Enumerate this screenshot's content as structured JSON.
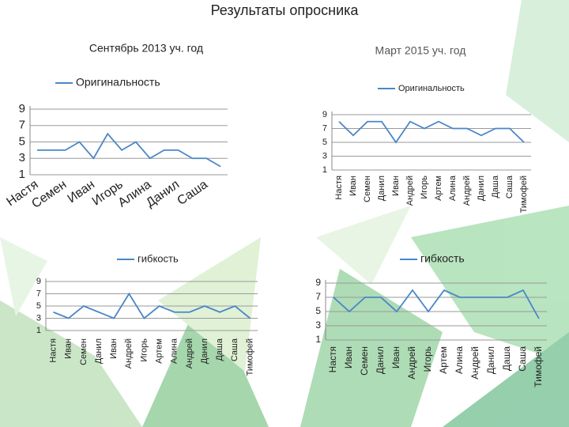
{
  "title": "Результаты опросника",
  "chart_data": [
    {
      "type": "line",
      "title": "Сентябрь 2013 уч. год",
      "categories": [
        "Настя",
        null,
        "Семен",
        null,
        "Иван",
        null,
        "Игорь",
        null,
        "Алина",
        null,
        "Данил",
        null,
        "Саша",
        null
      ],
      "series": [
        {
          "name": "Оригинальность",
          "color": "#4a86c8",
          "values": [
            4,
            4,
            4,
            5,
            3,
            6,
            4,
            5,
            3,
            4,
            4,
            3,
            3,
            2
          ]
        }
      ],
      "ylim": [
        1,
        9
      ],
      "yticks": [
        1,
        3,
        5,
        7,
        9
      ],
      "grid": true,
      "legend": "top"
    },
    {
      "type": "line",
      "title": "Март 2015 уч. год",
      "categories": [
        "Настя",
        "Иван",
        "Семен",
        "Данил",
        "Иван",
        "Андрей",
        "Игорь",
        "Артем",
        "Алина",
        "Андрей",
        "Данил",
        "Даша",
        "Саша",
        "Тимофей"
      ],
      "series": [
        {
          "name": "Оригинальность",
          "color": "#4a86c8",
          "values": [
            8,
            6,
            8,
            8,
            5,
            8,
            7,
            8,
            7,
            7,
            6,
            7,
            7,
            5
          ]
        }
      ],
      "ylim": [
        1,
        9
      ],
      "yticks": [
        1,
        3,
        5,
        7,
        9
      ],
      "grid": true,
      "legend": "top"
    },
    {
      "type": "line",
      "categories": [
        "Настя",
        "Иван",
        "Семен",
        "Данил",
        "Иван",
        "Андрей",
        "Игорь",
        "Артем",
        "Алина",
        "Андрей",
        "Данил",
        "Даша",
        "Саша",
        "Тимофей"
      ],
      "series": [
        {
          "name": "гибкость",
          "color": "#4a86c8",
          "values": [
            4,
            3,
            5,
            4,
            3,
            7,
            3,
            5,
            4,
            4,
            5,
            4,
            5,
            3
          ]
        }
      ],
      "ylim": [
        1,
        9
      ],
      "yticks": [
        1,
        3,
        5,
        7,
        9
      ],
      "grid": true,
      "legend": "top"
    },
    {
      "type": "line",
      "categories": [
        "Настя",
        "Иван",
        "Семен",
        "Данил",
        "Иван",
        "Андрей",
        "Игорь",
        "Артем",
        "Алина",
        "Андрей",
        "Данил",
        "Даша",
        "Саша",
        "Тимофей"
      ],
      "series": [
        {
          "name": "гибкость",
          "color": "#4a86c8",
          "values": [
            7,
            5,
            7,
            7,
            5,
            8,
            5,
            8,
            7,
            7,
            7,
            7,
            8,
            4
          ]
        }
      ],
      "ylim": [
        1,
        9
      ],
      "yticks": [
        1,
        3,
        5,
        7,
        9
      ],
      "grid": true,
      "legend": "top"
    }
  ]
}
